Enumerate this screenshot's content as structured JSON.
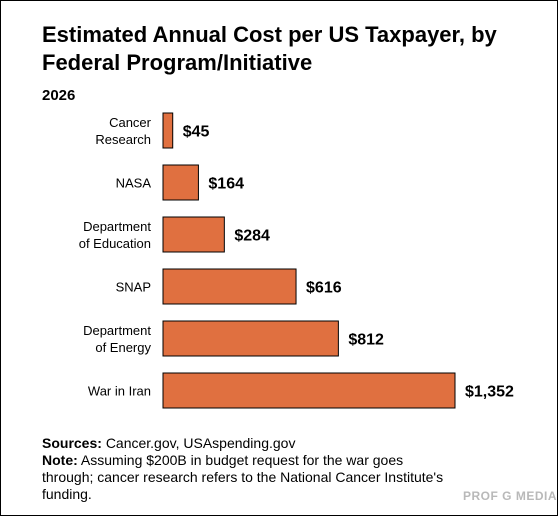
{
  "title": "Estimated Annual Cost per US Taxpayer, by Federal Program/Initiative",
  "subtitle": "2026",
  "colors": {
    "bar": "#e07040",
    "bar_border": "#000000",
    "brand": "#b9b9b9"
  },
  "chart_data": {
    "type": "bar",
    "orientation": "horizontal",
    "title": "Estimated Annual Cost per US Taxpayer, by Federal Program/Initiative",
    "subtitle": "2026",
    "categories": [
      [
        "Cancer",
        "Research"
      ],
      [
        "NASA"
      ],
      [
        "Department",
        "of Education"
      ],
      [
        "SNAP"
      ],
      [
        "Department",
        "of Energy"
      ],
      [
        "War in Iran"
      ]
    ],
    "values": [
      45,
      164,
      284,
      616,
      812,
      1352
    ],
    "data_labels": [
      "$45",
      "$164",
      "$284",
      "$616",
      "$812",
      "$1,352"
    ],
    "xlim": [
      0,
      1352
    ],
    "grid": false,
    "legend": "none"
  },
  "footer": {
    "sources_label": "Sources:",
    "sources_text": "Cancer.gov, USAspending.gov",
    "note_label": "Note:",
    "note_text": "Assuming $200B in budget request for the war goes through; cancer research refers to the National Cancer Institute's funding."
  },
  "brand": "PROF G MEDIA"
}
